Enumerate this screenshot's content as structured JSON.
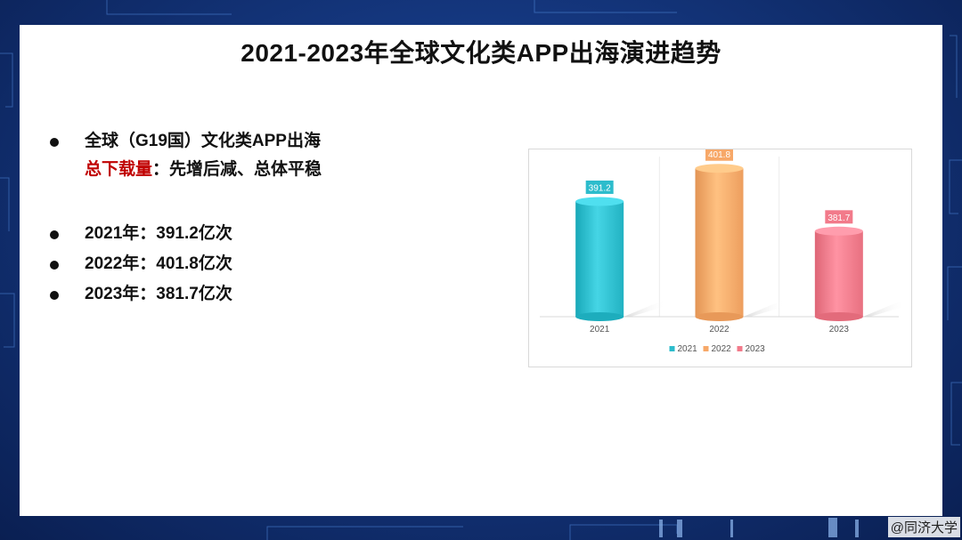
{
  "slide": {
    "title": "2021-2023年全球文化类APP出海演进趋势",
    "bullets": {
      "line1": "全球（G19国）文化类APP出海",
      "highlight": "总下载量",
      "rest": "：先增后减、总体平稳",
      "y2021": "2021年：391.2亿次",
      "y2022": "2022年：401.8亿次",
      "y2023": "2023年：381.7亿次"
    },
    "watermark": "@同济大学"
  },
  "chart_data": {
    "type": "bar",
    "categories": [
      "2021",
      "2022",
      "2023"
    ],
    "values": [
      391.2,
      401.8,
      381.7
    ],
    "value_labels": [
      "391.2",
      "401.8",
      "381.7"
    ],
    "legend": [
      "2021",
      "2022",
      "2023"
    ],
    "colors": [
      "#2cbccc",
      "#f7a868",
      "#f27a8a"
    ],
    "bar_style": "3d-cylinder",
    "legend_position": "bottom",
    "title": "",
    "xlabel": "",
    "ylabel": ""
  }
}
